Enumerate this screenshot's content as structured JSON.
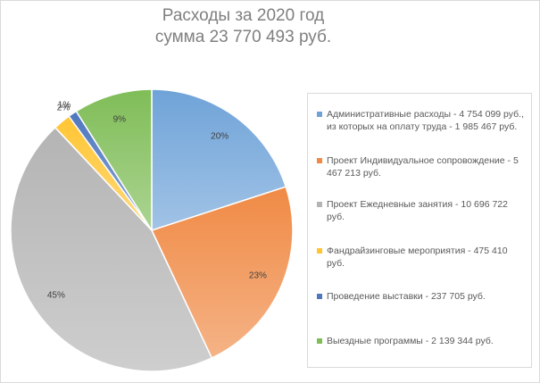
{
  "chart_data": {
    "type": "pie",
    "title_line1": "Расходы за 2020 год",
    "title_line2": "сумма 23 770 493 руб.",
    "slices": [
      {
        "label": "Административные расходы - 4 754 099 руб., из которых на оплату труда - 1 985 467 руб.",
        "value": 4754099,
        "percent_label": "20%",
        "color": "#6fa3d8"
      },
      {
        "label": "Проект Индивидуальное сопровождение - 5 467 213 руб.",
        "value": 5467213,
        "percent_label": "23%",
        "color": "#f08a45"
      },
      {
        "label": "Проект Ежедневные занятия - 10 696 722 руб.",
        "value": 10696722,
        "percent_label": "45%",
        "color": "#b4b4b4"
      },
      {
        "label": "Фандрайзинговые мероприятия - 475 410 руб.",
        "value": 475410,
        "percent_label": "2%",
        "color": "#ffc533"
      },
      {
        "label": "Проведение выставки - 237 705 руб.",
        "value": 237705,
        "percent_label": "1%",
        "color": "#4f77be"
      },
      {
        "label": "Выездные программы - 2 139 344 руб.",
        "value": 2139344,
        "percent_label": "9%",
        "color": "#7fbd57"
      }
    ],
    "legend_position": "right"
  }
}
